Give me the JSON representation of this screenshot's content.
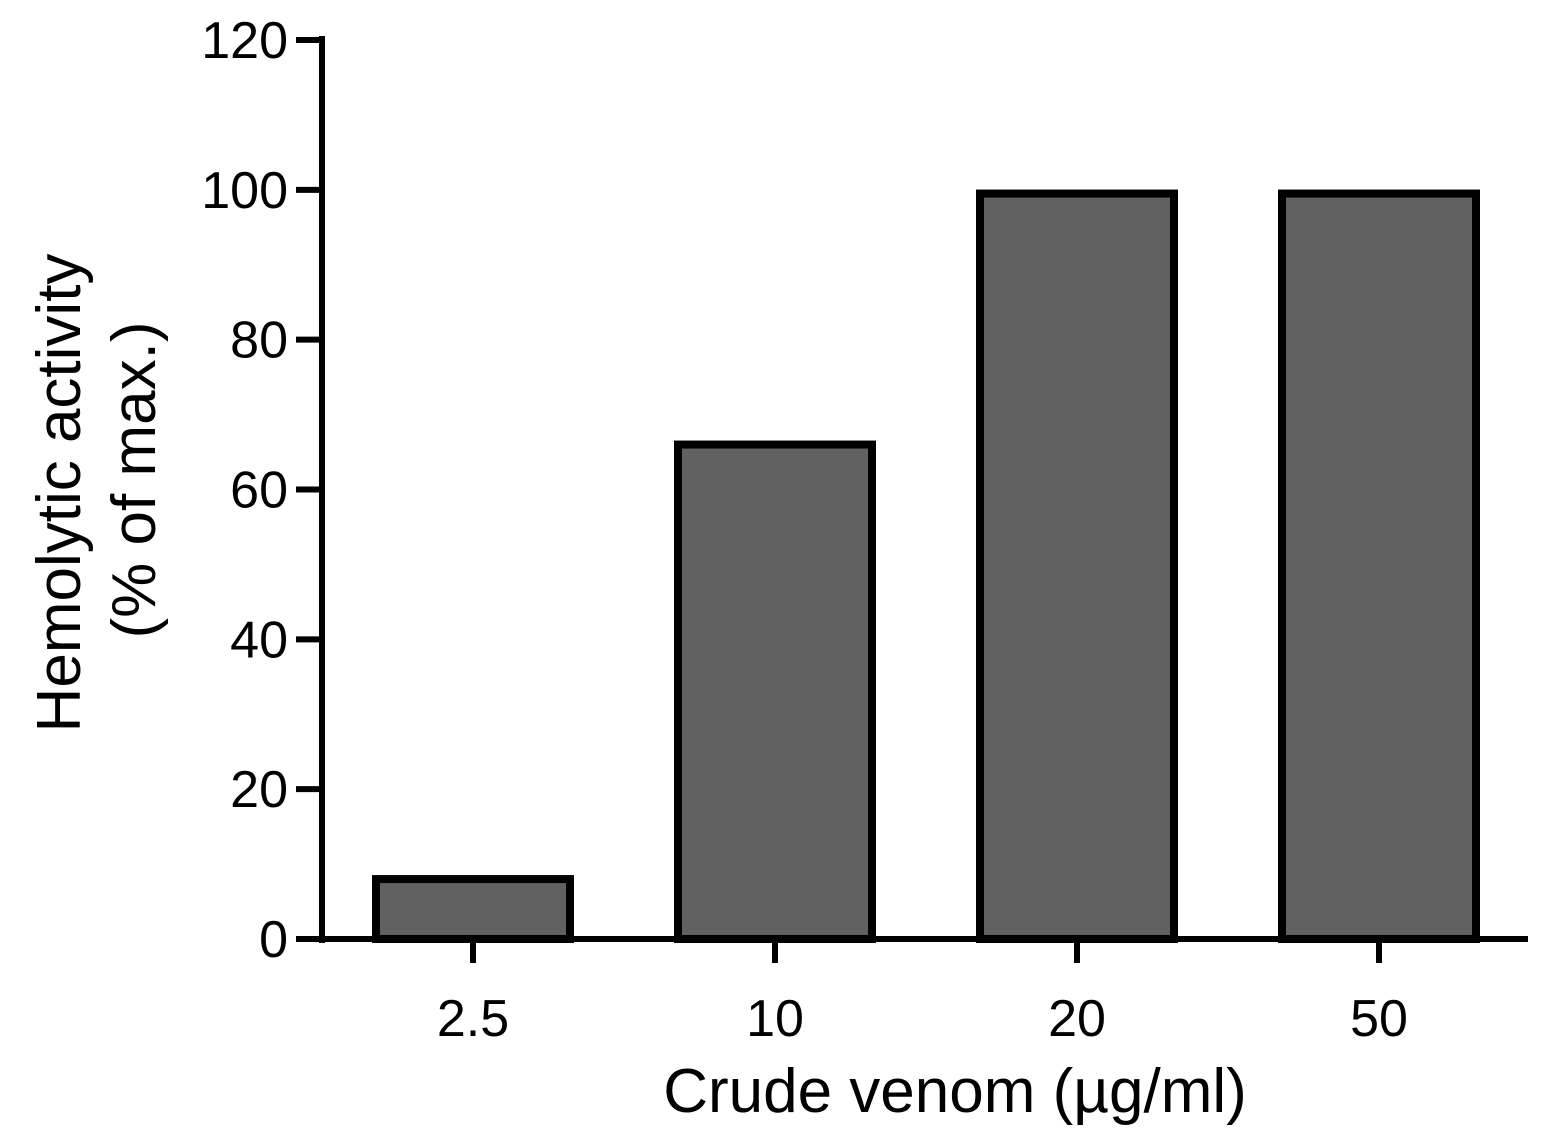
{
  "chart_data": {
    "type": "bar",
    "categories": [
      "2.5",
      "10",
      "20",
      "50"
    ],
    "values": [
      8,
      66,
      99.5,
      99.5
    ],
    "title": "",
    "xlabel": "Crude venom (µg/ml)",
    "ylabel_lines": [
      "Hemolytic activity",
      "(% of max.)"
    ],
    "ylim": [
      0,
      120
    ],
    "yticks": [
      0,
      20,
      40,
      60,
      80,
      100,
      120
    ],
    "grid": false,
    "legend": "none",
    "colors": {
      "bar_fill": "#616161",
      "bar_stroke": "#000000",
      "axis": "#000000",
      "background": "#ffffff"
    }
  }
}
